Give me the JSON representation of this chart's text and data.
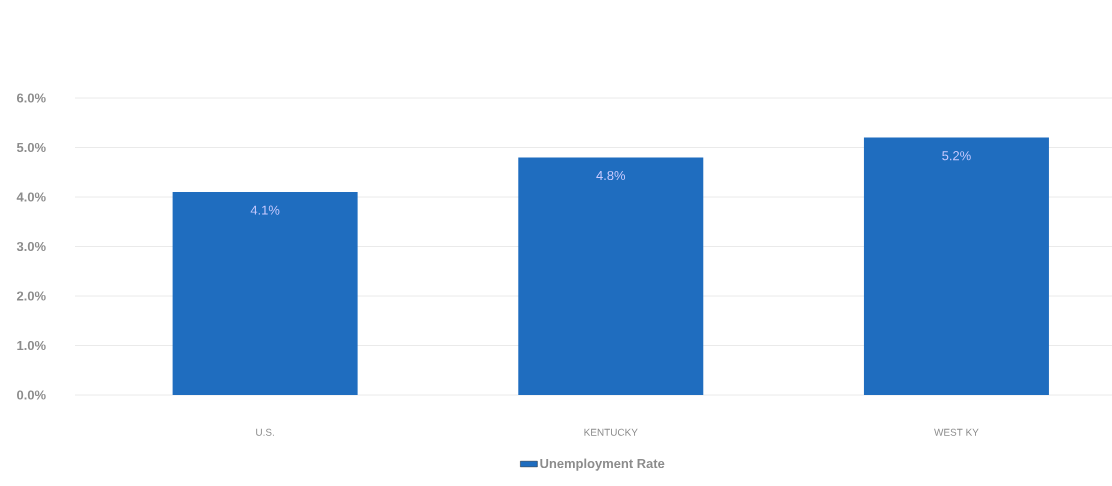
{
  "chart_data": {
    "type": "bar",
    "categories": [
      "U.S.",
      "KENTUCKY",
      "WEST KY"
    ],
    "series": [
      {
        "name": "Unemployment Rate",
        "color": "#1f6dbf",
        "values": [
          4.1,
          4.8,
          5.2
        ],
        "value_labels": [
          "4.1%",
          "4.8%",
          "5.2%"
        ]
      }
    ],
    "ylim": [
      0,
      6
    ],
    "yticks": [
      {
        "value": 0,
        "label": "0.0%"
      },
      {
        "value": 1,
        "label": "1.0%"
      },
      {
        "value": 2,
        "label": "2.0%"
      },
      {
        "value": 3,
        "label": "3.0%"
      },
      {
        "value": 4,
        "label": "4.0%"
      },
      {
        "value": 5,
        "label": "5.0%"
      },
      {
        "value": 6,
        "label": "6.0%"
      }
    ],
    "grid": "y",
    "legend": "bottom"
  }
}
